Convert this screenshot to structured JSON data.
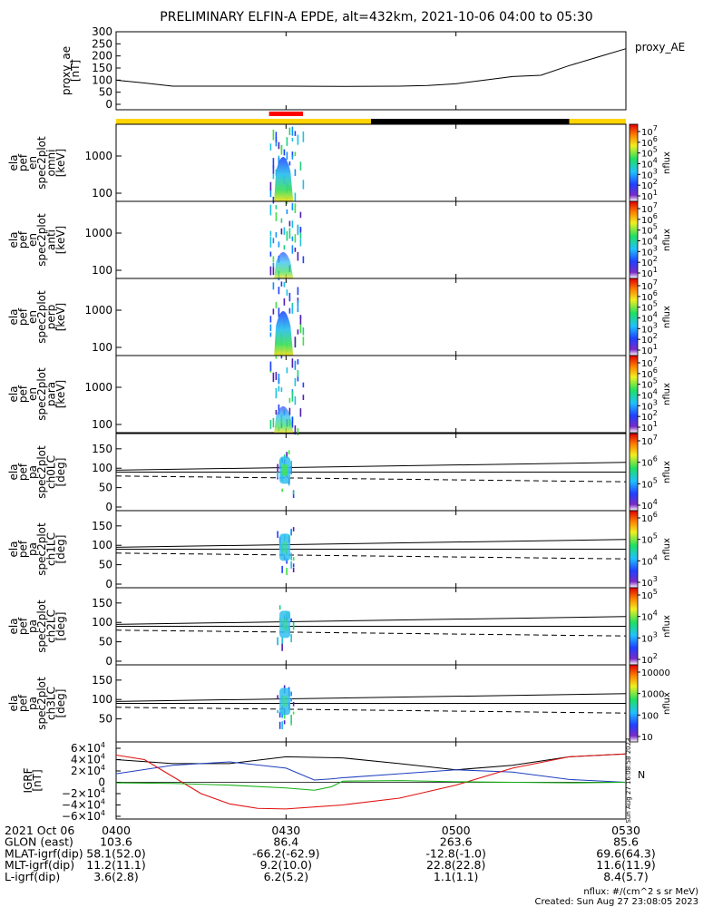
{
  "title": "PRELIMINARY ELFIN-A EPDE, alt=432km, 2021-10-06 04:00 to 05:30",
  "colors": {
    "zone_dayside": "#ffd400",
    "zone_nightside": "#000000",
    "science_zone": "#ff0000",
    "igrf_bx": "#000000",
    "igrf_by": "#2040c0",
    "igrf_bz": "#e01010",
    "igrf_model": "#10b010"
  },
  "panels": {
    "proxy_ae": {
      "ylabel": [
        "proxy_ae",
        "[nT]"
      ],
      "legend": "proxy_AE",
      "yticks": [
        "0",
        "50",
        "100",
        "150",
        "200",
        "250",
        "300"
      ]
    },
    "spectra": [
      {
        "ylabel": [
          "ela",
          "pef",
          "en",
          "spec2plot",
          "omni",
          "[keV]"
        ],
        "yticks": [
          "100",
          "1000"
        ],
        "cbar_ticks": [
          "10",
          "10",
          "10",
          "10",
          "10",
          "10",
          "10"
        ],
        "cbar_exps": [
          "7",
          "6",
          "5",
          "4",
          "3",
          "2",
          "1"
        ],
        "cbar_label": "nflux"
      },
      {
        "ylabel": [
          "ela",
          "pef",
          "en",
          "spec2plot",
          "anti",
          "[keV]"
        ],
        "yticks": [
          "100",
          "1000"
        ],
        "cbar_ticks": [
          "10",
          "10",
          "10",
          "10",
          "10",
          "10",
          "10"
        ],
        "cbar_exps": [
          "7",
          "6",
          "5",
          "4",
          "3",
          "2",
          "1"
        ],
        "cbar_label": "nflux"
      },
      {
        "ylabel": [
          "ela",
          "pef",
          "en",
          "spec2plot",
          "perp",
          "[keV]"
        ],
        "yticks": [
          "100",
          "1000"
        ],
        "cbar_ticks": [
          "10",
          "10",
          "10",
          "10",
          "10",
          "10",
          "10"
        ],
        "cbar_exps": [
          "7",
          "6",
          "5",
          "4",
          "3",
          "2",
          "1"
        ],
        "cbar_label": "nflux"
      },
      {
        "ylabel": [
          "ela",
          "pef",
          "en",
          "spec2plot",
          "para",
          "[keV]"
        ],
        "yticks": [
          "100",
          "1000"
        ],
        "cbar_ticks": [
          "10",
          "10",
          "10",
          "10",
          "10",
          "10",
          "10"
        ],
        "cbar_exps": [
          "7",
          "6",
          "5",
          "4",
          "3",
          "2",
          "1"
        ],
        "cbar_label": "nflux"
      }
    ],
    "pitch": [
      {
        "ylabel": [
          "ela",
          "pef",
          "pa",
          "spec2plot",
          "ch0LC",
          "[deg]"
        ],
        "yticks": [
          "0",
          "50",
          "100",
          "150"
        ],
        "cbar_ticks": [
          "10",
          "10",
          "10",
          "10"
        ],
        "cbar_exps": [
          "7",
          "6",
          "5",
          "4"
        ],
        "cbar_label": "nflux"
      },
      {
        "ylabel": [
          "ela",
          "pef",
          "pa",
          "spec2plot",
          "ch1LC",
          "[deg]"
        ],
        "yticks": [
          "0",
          "50",
          "100",
          "150"
        ],
        "cbar_ticks": [
          "10",
          "10",
          "10",
          "10"
        ],
        "cbar_exps": [
          "6",
          "5",
          "4",
          "3"
        ],
        "cbar_label": "nflux"
      },
      {
        "ylabel": [
          "ela",
          "pef",
          "pa",
          "spec2plot",
          "ch2LC",
          "[deg]"
        ],
        "yticks": [
          "0",
          "50",
          "100",
          "150"
        ],
        "cbar_ticks": [
          "10",
          "10",
          "10",
          "10"
        ],
        "cbar_exps": [
          "5",
          "4",
          "3",
          "2"
        ],
        "cbar_label": "nflux"
      },
      {
        "ylabel": [
          "ela",
          "pef",
          "pa",
          "spec2plot",
          "ch3LC",
          "[deg]"
        ],
        "yticks": [
          "50",
          "100",
          "150"
        ],
        "cbar_ticks": [
          "10000",
          "1000",
          "100",
          "10"
        ],
        "cbar_exps": [
          "",
          "",
          "",
          ""
        ],
        "cbar_label": "nflux"
      }
    ],
    "igrf": {
      "ylabel": [
        "IGRF",
        "[nT]"
      ],
      "yticks": [
        "6×10",
        "4×10",
        "2×10",
        "0",
        "−2×10",
        "−4×10",
        "−6×10"
      ],
      "yexp": "4",
      "stamp": "Sun Aug 27 16:08:58 2023",
      "legend_marker": "N"
    }
  },
  "footer": {
    "rows": [
      {
        "label": "2021 Oct 06",
        "values": [
          "0400",
          "0430",
          "0500",
          "0530"
        ]
      },
      {
        "label": "GLON (east)",
        "values": [
          "103.6",
          "86.4",
          "263.6",
          "85.6"
        ]
      },
      {
        "label": "MLAT-igrf(dip)",
        "values": [
          "58.1(52.0)",
          "-66.2(-62.9)",
          "-12.8(-1.0)",
          "69.6(64.3)"
        ]
      },
      {
        "label": "MLT-igrf(dip)",
        "values": [
          "11.2(11.1)",
          "9.2(10.0)",
          "22.8(22.8)",
          "11.6(11.9)"
        ]
      },
      {
        "label": "L-igrf(dip)",
        "values": [
          "3.6(2.8)",
          "6.2(5.2)",
          "1.1(1.1)",
          "8.4(5.7)"
        ]
      }
    ],
    "units": "nflux: #/(cm^2 s sr MeV)",
    "created": "Created: Sun Aug 27 23:08:05 2023"
  },
  "chart_data": {
    "type": "line",
    "time_axis": {
      "start": "2021-10-06 04:00",
      "end": "2021-10-06 05:30",
      "ticks": [
        "0400",
        "0430",
        "0500",
        "0530"
      ]
    },
    "proxy_ae": {
      "ylim": [
        0,
        300
      ],
      "minutes": [
        0,
        5,
        10,
        20,
        30,
        40,
        50,
        55,
        60,
        65,
        70,
        75,
        80,
        85,
        90
      ],
      "values": [
        100,
        88,
        75,
        75,
        75,
        74,
        75,
        78,
        85,
        100,
        115,
        120,
        160,
        195,
        230
      ]
    },
    "orbit_zones": [
      {
        "type": "dayside",
        "start_min": 0,
        "end_min": 45
      },
      {
        "type": "nightside",
        "start_min": 45,
        "end_min": 80
      },
      {
        "type": "dayside",
        "start_min": 80,
        "end_min": 90
      }
    ],
    "science_zone": {
      "start_min": 27,
      "end_min": 33
    },
    "igrf": {
      "ylim": [
        -60000,
        60000
      ],
      "series": [
        {
          "color_key": "igrf_bx",
          "minutes": [
            0,
            10,
            20,
            30,
            40,
            50,
            60,
            70,
            80,
            90
          ],
          "values": [
            40000,
            33000,
            33000,
            45000,
            43000,
            33000,
            22000,
            30000,
            45000,
            50000
          ]
        },
        {
          "color_key": "igrf_by",
          "minutes": [
            0,
            10,
            20,
            30,
            35,
            38,
            40,
            50,
            60,
            70,
            80,
            90
          ],
          "values": [
            15000,
            30000,
            36000,
            25000,
            4000,
            6000,
            8000,
            15000,
            22000,
            18000,
            5000,
            0
          ]
        },
        {
          "color_key": "igrf_bz",
          "minutes": [
            0,
            5,
            10,
            15,
            20,
            25,
            30,
            40,
            50,
            60,
            70,
            80,
            90
          ],
          "values": [
            48000,
            40000,
            10000,
            -20000,
            -38000,
            -46000,
            -47000,
            -40000,
            -28000,
            -5000,
            25000,
            45000,
            50000
          ]
        },
        {
          "color_key": "igrf_model",
          "minutes": [
            0,
            10,
            20,
            30,
            35,
            38,
            40,
            50,
            60,
            70,
            80,
            90
          ],
          "values": [
            -1000,
            -2000,
            -5000,
            -10000,
            -14000,
            -8000,
            2000,
            3000,
            1000,
            0,
            -1000,
            0
          ]
        }
      ]
    }
  }
}
